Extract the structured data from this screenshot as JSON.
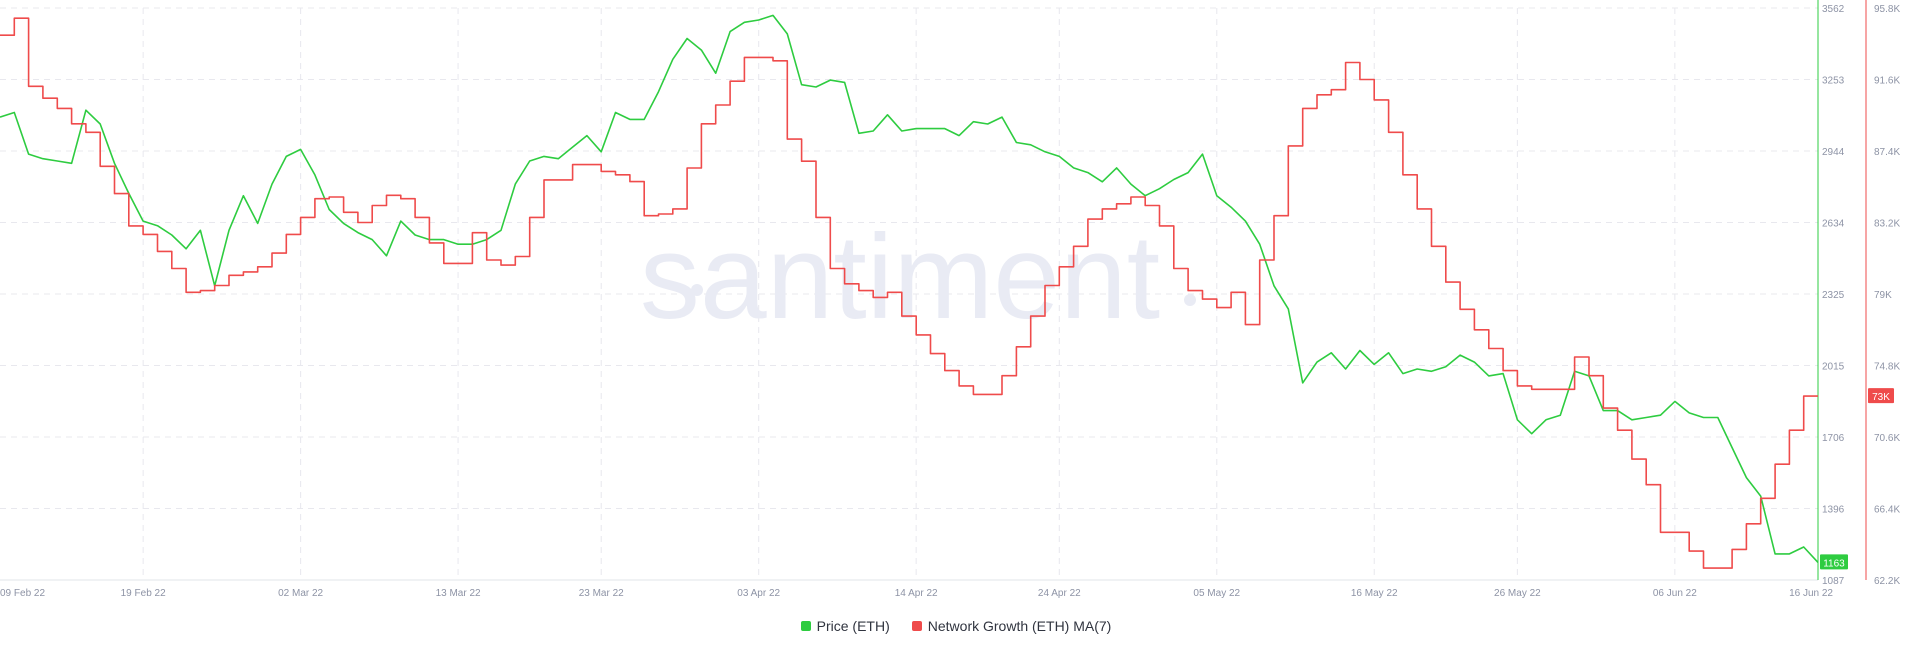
{
  "chart_data": {
    "type": "line",
    "watermark": "santiment",
    "x_ticks": [
      "09 Feb 22",
      "19 Feb 22",
      "02 Mar 22",
      "13 Mar 22",
      "23 Mar 22",
      "03 Apr 22",
      "14 Apr 22",
      "24 Apr 22",
      "05 May 22",
      "16 May 22",
      "26 May 22",
      "06 Jun 22",
      "16 Jun 22"
    ],
    "x_range": [
      "2022-02-09",
      "2022-06-16"
    ],
    "price_axis": {
      "ticks": [
        "3562",
        "3253",
        "2944",
        "2634",
        "2325",
        "2015",
        "1706",
        "1396",
        "1087"
      ],
      "range": [
        1087,
        3562
      ],
      "color": "#2ecc40"
    },
    "growth_axis": {
      "ticks": [
        "95.8K",
        "91.6K",
        "87.4K",
        "83.2K",
        "79K",
        "74.8K",
        "70.6K",
        "66.4K",
        "62.2K"
      ],
      "range": [
        62200,
        95800
      ],
      "color": "#ef4b4b"
    },
    "last_price_badge": "1163",
    "last_growth_badge": "73K",
    "grid": true,
    "series": [
      {
        "name": "Price (ETH)",
        "color": "#2ecc40",
        "axis": "price",
        "points": [
          [
            "2022-02-09",
            3090
          ],
          [
            "2022-02-10",
            3110
          ],
          [
            "2022-02-11",
            2930
          ],
          [
            "2022-02-12",
            2910
          ],
          [
            "2022-02-13",
            2900
          ],
          [
            "2022-02-14",
            2890
          ],
          [
            "2022-02-15",
            3120
          ],
          [
            "2022-02-16",
            3060
          ],
          [
            "2022-02-17",
            2890
          ],
          [
            "2022-02-18",
            2760
          ],
          [
            "2022-02-19",
            2640
          ],
          [
            "2022-02-20",
            2620
          ],
          [
            "2022-02-21",
            2580
          ],
          [
            "2022-02-22",
            2520
          ],
          [
            "2022-02-23",
            2600
          ],
          [
            "2022-02-24",
            2360
          ],
          [
            "2022-02-25",
            2600
          ],
          [
            "2022-02-26",
            2750
          ],
          [
            "2022-02-27",
            2630
          ],
          [
            "2022-02-28",
            2800
          ],
          [
            "2022-03-01",
            2920
          ],
          [
            "2022-03-02",
            2950
          ],
          [
            "2022-03-03",
            2840
          ],
          [
            "2022-03-04",
            2690
          ],
          [
            "2022-03-05",
            2630
          ],
          [
            "2022-03-06",
            2590
          ],
          [
            "2022-03-07",
            2560
          ],
          [
            "2022-03-08",
            2490
          ],
          [
            "2022-03-09",
            2640
          ],
          [
            "2022-03-10",
            2580
          ],
          [
            "2022-03-11",
            2560
          ],
          [
            "2022-03-12",
            2560
          ],
          [
            "2022-03-13",
            2540
          ],
          [
            "2022-03-14",
            2540
          ],
          [
            "2022-03-15",
            2560
          ],
          [
            "2022-03-16",
            2600
          ],
          [
            "2022-03-17",
            2800
          ],
          [
            "2022-03-18",
            2900
          ],
          [
            "2022-03-19",
            2920
          ],
          [
            "2022-03-20",
            2910
          ],
          [
            "2022-03-21",
            2960
          ],
          [
            "2022-03-22",
            3010
          ],
          [
            "2022-03-23",
            2940
          ],
          [
            "2022-03-24",
            3110
          ],
          [
            "2022-03-25",
            3080
          ],
          [
            "2022-03-26",
            3080
          ],
          [
            "2022-03-27",
            3200
          ],
          [
            "2022-03-28",
            3340
          ],
          [
            "2022-03-29",
            3430
          ],
          [
            "2022-03-30",
            3380
          ],
          [
            "2022-03-31",
            3280
          ],
          [
            "2022-04-01",
            3460
          ],
          [
            "2022-04-02",
            3500
          ],
          [
            "2022-04-03",
            3510
          ],
          [
            "2022-04-04",
            3530
          ],
          [
            "2022-04-05",
            3450
          ],
          [
            "2022-04-06",
            3230
          ],
          [
            "2022-04-07",
            3220
          ],
          [
            "2022-04-08",
            3250
          ],
          [
            "2022-04-09",
            3240
          ],
          [
            "2022-04-10",
            3020
          ],
          [
            "2022-04-11",
            3030
          ],
          [
            "2022-04-12",
            3100
          ],
          [
            "2022-04-13",
            3030
          ],
          [
            "2022-04-14",
            3040
          ],
          [
            "2022-04-15",
            3040
          ],
          [
            "2022-04-16",
            3040
          ],
          [
            "2022-04-17",
            3010
          ],
          [
            "2022-04-18",
            3070
          ],
          [
            "2022-04-19",
            3060
          ],
          [
            "2022-04-20",
            3090
          ],
          [
            "2022-04-21",
            2980
          ],
          [
            "2022-04-22",
            2970
          ],
          [
            "2022-04-23",
            2940
          ],
          [
            "2022-04-24",
            2920
          ],
          [
            "2022-04-25",
            2870
          ],
          [
            "2022-04-26",
            2850
          ],
          [
            "2022-04-27",
            2810
          ],
          [
            "2022-04-28",
            2870
          ],
          [
            "2022-04-29",
            2800
          ],
          [
            "2022-04-30",
            2750
          ],
          [
            "2022-05-01",
            2780
          ],
          [
            "2022-05-02",
            2820
          ],
          [
            "2022-05-03",
            2850
          ],
          [
            "2022-05-04",
            2930
          ],
          [
            "2022-05-05",
            2750
          ],
          [
            "2022-05-06",
            2700
          ],
          [
            "2022-05-07",
            2640
          ],
          [
            "2022-05-08",
            2540
          ],
          [
            "2022-05-09",
            2360
          ],
          [
            "2022-05-10",
            2260
          ],
          [
            "2022-05-11",
            1940
          ],
          [
            "2022-05-12",
            2030
          ],
          [
            "2022-05-13",
            2070
          ],
          [
            "2022-05-14",
            2000
          ],
          [
            "2022-05-15",
            2080
          ],
          [
            "2022-05-16",
            2020
          ],
          [
            "2022-05-17",
            2070
          ],
          [
            "2022-05-18",
            1980
          ],
          [
            "2022-05-19",
            2000
          ],
          [
            "2022-05-20",
            1990
          ],
          [
            "2022-05-21",
            2010
          ],
          [
            "2022-05-22",
            2060
          ],
          [
            "2022-05-23",
            2030
          ],
          [
            "2022-05-24",
            1970
          ],
          [
            "2022-05-25",
            1980
          ],
          [
            "2022-05-26",
            1780
          ],
          [
            "2022-05-27",
            1720
          ],
          [
            "2022-05-28",
            1780
          ],
          [
            "2022-05-29",
            1800
          ],
          [
            "2022-05-30",
            1990
          ],
          [
            "2022-05-31",
            1970
          ],
          [
            "2022-06-01",
            1820
          ],
          [
            "2022-06-02",
            1820
          ],
          [
            "2022-06-03",
            1780
          ],
          [
            "2022-06-04",
            1790
          ],
          [
            "2022-06-05",
            1800
          ],
          [
            "2022-06-06",
            1860
          ],
          [
            "2022-06-07",
            1810
          ],
          [
            "2022-06-08",
            1790
          ],
          [
            "2022-06-09",
            1790
          ],
          [
            "2022-06-10",
            1660
          ],
          [
            "2022-06-11",
            1530
          ],
          [
            "2022-06-12",
            1450
          ],
          [
            "2022-06-13",
            1200
          ],
          [
            "2022-06-14",
            1200
          ],
          [
            "2022-06-15",
            1230
          ],
          [
            "2022-06-16",
            1163
          ]
        ]
      },
      {
        "name": "Network Growth (ETH) MA(7)",
        "color": "#ef4b4b",
        "axis": "growth",
        "points": [
          [
            "2022-02-09",
            94200
          ],
          [
            "2022-02-10",
            95200
          ],
          [
            "2022-02-11",
            91200
          ],
          [
            "2022-02-12",
            90500
          ],
          [
            "2022-02-13",
            89900
          ],
          [
            "2022-02-14",
            89000
          ],
          [
            "2022-02-15",
            88500
          ],
          [
            "2022-02-16",
            86500
          ],
          [
            "2022-02-17",
            84900
          ],
          [
            "2022-02-18",
            83000
          ],
          [
            "2022-02-19",
            82500
          ],
          [
            "2022-02-20",
            81500
          ],
          [
            "2022-02-21",
            80500
          ],
          [
            "2022-02-22",
            79100
          ],
          [
            "2022-02-23",
            79200
          ],
          [
            "2022-02-24",
            79500
          ],
          [
            "2022-02-25",
            80100
          ],
          [
            "2022-02-26",
            80300
          ],
          [
            "2022-02-27",
            80600
          ],
          [
            "2022-02-28",
            81400
          ],
          [
            "2022-03-01",
            82500
          ],
          [
            "2022-03-02",
            83500
          ],
          [
            "2022-03-03",
            84600
          ],
          [
            "2022-03-04",
            84700
          ],
          [
            "2022-03-05",
            83800
          ],
          [
            "2022-03-06",
            83200
          ],
          [
            "2022-03-07",
            84200
          ],
          [
            "2022-03-08",
            84800
          ],
          [
            "2022-03-09",
            84600
          ],
          [
            "2022-03-10",
            83500
          ],
          [
            "2022-03-11",
            82000
          ],
          [
            "2022-03-12",
            80800
          ],
          [
            "2022-03-13",
            80800
          ],
          [
            "2022-03-14",
            82600
          ],
          [
            "2022-03-15",
            81000
          ],
          [
            "2022-03-16",
            80700
          ],
          [
            "2022-03-17",
            81200
          ],
          [
            "2022-03-18",
            83500
          ],
          [
            "2022-03-19",
            85700
          ],
          [
            "2022-03-20",
            85700
          ],
          [
            "2022-03-21",
            86600
          ],
          [
            "2022-03-22",
            86600
          ],
          [
            "2022-03-23",
            86200
          ],
          [
            "2022-03-24",
            86000
          ],
          [
            "2022-03-25",
            85600
          ],
          [
            "2022-03-26",
            83600
          ],
          [
            "2022-03-27",
            83700
          ],
          [
            "2022-03-28",
            84000
          ],
          [
            "2022-03-29",
            86400
          ],
          [
            "2022-03-30",
            89000
          ],
          [
            "2022-03-31",
            90100
          ],
          [
            "2022-04-01",
            91500
          ],
          [
            "2022-04-02",
            92900
          ],
          [
            "2022-04-03",
            92900
          ],
          [
            "2022-04-04",
            92700
          ],
          [
            "2022-04-05",
            88100
          ],
          [
            "2022-04-06",
            86800
          ],
          [
            "2022-04-07",
            83500
          ],
          [
            "2022-04-08",
            80500
          ],
          [
            "2022-04-09",
            79600
          ],
          [
            "2022-04-10",
            79200
          ],
          [
            "2022-04-11",
            78800
          ],
          [
            "2022-04-12",
            79100
          ],
          [
            "2022-04-13",
            77700
          ],
          [
            "2022-04-14",
            76600
          ],
          [
            "2022-04-15",
            75500
          ],
          [
            "2022-04-16",
            74500
          ],
          [
            "2022-04-17",
            73600
          ],
          [
            "2022-04-18",
            73100
          ],
          [
            "2022-04-19",
            73100
          ],
          [
            "2022-04-20",
            74200
          ],
          [
            "2022-04-21",
            75900
          ],
          [
            "2022-04-22",
            77700
          ],
          [
            "2022-04-23",
            79500
          ],
          [
            "2022-04-24",
            80600
          ],
          [
            "2022-04-25",
            81800
          ],
          [
            "2022-04-26",
            83400
          ],
          [
            "2022-04-27",
            84000
          ],
          [
            "2022-04-28",
            84300
          ],
          [
            "2022-04-29",
            84700
          ],
          [
            "2022-04-30",
            84200
          ],
          [
            "2022-05-01",
            83000
          ],
          [
            "2022-05-02",
            80500
          ],
          [
            "2022-05-03",
            79200
          ],
          [
            "2022-05-04",
            78700
          ],
          [
            "2022-05-05",
            78200
          ],
          [
            "2022-05-06",
            79100
          ],
          [
            "2022-05-07",
            77200
          ],
          [
            "2022-05-08",
            81000
          ],
          [
            "2022-05-09",
            83600
          ],
          [
            "2022-05-10",
            87700
          ],
          [
            "2022-05-11",
            89900
          ],
          [
            "2022-05-12",
            90700
          ],
          [
            "2022-05-13",
            91000
          ],
          [
            "2022-05-14",
            92600
          ],
          [
            "2022-05-15",
            91600
          ],
          [
            "2022-05-16",
            90400
          ],
          [
            "2022-05-17",
            88500
          ],
          [
            "2022-05-18",
            86000
          ],
          [
            "2022-05-19",
            84000
          ],
          [
            "2022-05-20",
            81800
          ],
          [
            "2022-05-21",
            79700
          ],
          [
            "2022-05-22",
            78100
          ],
          [
            "2022-05-23",
            76900
          ],
          [
            "2022-05-24",
            75800
          ],
          [
            "2022-05-25",
            74500
          ],
          [
            "2022-05-26",
            73600
          ],
          [
            "2022-05-27",
            73400
          ],
          [
            "2022-05-28",
            73400
          ],
          [
            "2022-05-29",
            73400
          ],
          [
            "2022-05-30",
            75300
          ],
          [
            "2022-05-31",
            74200
          ],
          [
            "2022-06-01",
            72300
          ],
          [
            "2022-06-02",
            71000
          ],
          [
            "2022-06-03",
            69300
          ],
          [
            "2022-06-04",
            67800
          ],
          [
            "2022-06-05",
            65000
          ],
          [
            "2022-06-06",
            65000
          ],
          [
            "2022-06-07",
            63900
          ],
          [
            "2022-06-08",
            62900
          ],
          [
            "2022-06-09",
            62900
          ],
          [
            "2022-06-10",
            64000
          ],
          [
            "2022-06-11",
            65500
          ],
          [
            "2022-06-12",
            67000
          ],
          [
            "2022-06-13",
            69000
          ],
          [
            "2022-06-14",
            71000
          ],
          [
            "2022-06-15",
            73000
          ],
          [
            "2022-06-16",
            73000
          ]
        ]
      }
    ]
  }
}
